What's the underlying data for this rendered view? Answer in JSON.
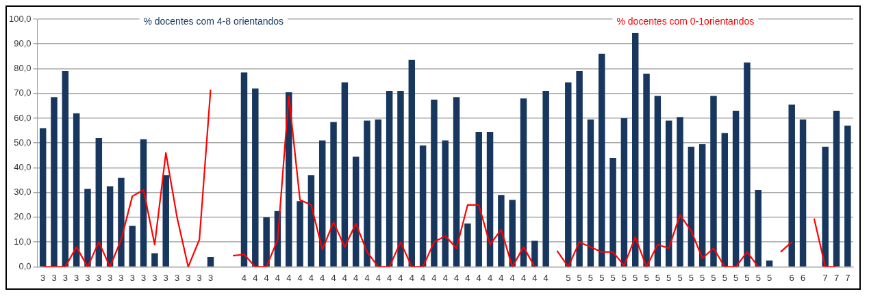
{
  "chart_data": {
    "type": "bar",
    "categories": [
      "3",
      "3",
      "3",
      "3",
      "3",
      "3",
      "3",
      "3",
      "3",
      "3",
      "3",
      "3",
      "3",
      "3",
      "3",
      "3",
      null,
      null,
      "4",
      "4",
      "4",
      "4",
      "4",
      "4",
      "4",
      "4",
      "4",
      "4",
      "4",
      "4",
      "4",
      "4",
      "4",
      "4",
      "4",
      "4",
      "4",
      "4",
      "4",
      "4",
      "4",
      "4",
      "4",
      "4",
      "4",
      "4",
      null,
      "5",
      "5",
      "5",
      "5",
      "5",
      "5",
      "5",
      "5",
      "5",
      "5",
      "5",
      "5",
      "5",
      "5",
      "5",
      "5",
      "5",
      "5",
      "5",
      null,
      "6",
      "6",
      null,
      "7",
      "7",
      "7"
    ],
    "series": [
      {
        "name": "% docentes com 4-8 orientandos",
        "color": "#17375e",
        "values": [
          56,
          68.5,
          79,
          62,
          31.5,
          52,
          32.5,
          36,
          16.5,
          51.5,
          5.5,
          37,
          null,
          null,
          null,
          4,
          null,
          null,
          78.5,
          72,
          20,
          22.5,
          70.5,
          26.5,
          37,
          51,
          58.5,
          74.5,
          44.5,
          59,
          59.5,
          71,
          71,
          83.5,
          49,
          67.5,
          51,
          68.5,
          17.5,
          54.5,
          54.5,
          29,
          27,
          68,
          10.5,
          71,
          null,
          74.5,
          79,
          59.5,
          86,
          44,
          60,
          94.5,
          78,
          69,
          59,
          60.5,
          48.5,
          49.5,
          69,
          54,
          63,
          82.5,
          31,
          2.5,
          null,
          65.5,
          59.5,
          null,
          48.5,
          63,
          57
        ]
      },
      {
        "name": "% docentes com 0-1orientandos",
        "type": "line",
        "color": "#ff0000",
        "values": [
          0,
          0,
          0,
          8,
          0,
          10,
          0,
          11,
          28.5,
          31,
          9,
          46,
          20,
          0,
          11,
          71.5,
          null,
          4.5,
          5,
          0,
          0,
          11,
          69,
          27,
          25,
          7,
          18,
          8,
          17.5,
          6,
          0,
          0,
          10,
          0,
          0,
          10,
          12.5,
          7.5,
          25,
          25,
          9,
          15,
          0,
          8,
          0,
          null,
          6.5,
          0,
          10,
          8,
          6,
          6,
          0.5,
          12,
          0,
          9,
          7.5,
          21,
          14.5,
          3.5,
          7.5,
          0,
          0,
          6,
          0,
          null,
          6,
          10,
          null,
          19.5,
          0,
          0,
          null
        ]
      }
    ],
    "ylim": [
      0,
      100
    ],
    "yticks": [
      {
        "value": 0,
        "label": "0,0"
      },
      {
        "value": 10,
        "label": "10,0"
      },
      {
        "value": 20,
        "label": "20,0"
      },
      {
        "value": 30,
        "label": "30,0"
      },
      {
        "value": 40,
        "label": "40,0"
      },
      {
        "value": 50,
        "label": "50,0"
      },
      {
        "value": 60,
        "label": "60,0"
      },
      {
        "value": 70,
        "label": "70,0"
      },
      {
        "value": 80,
        "label": "80,0"
      },
      {
        "value": 90,
        "label": "90,0"
      },
      {
        "value": 100,
        "label": "100,0"
      }
    ],
    "grid": "y",
    "legend": "top",
    "marker": "none",
    "line_style": "solid"
  }
}
